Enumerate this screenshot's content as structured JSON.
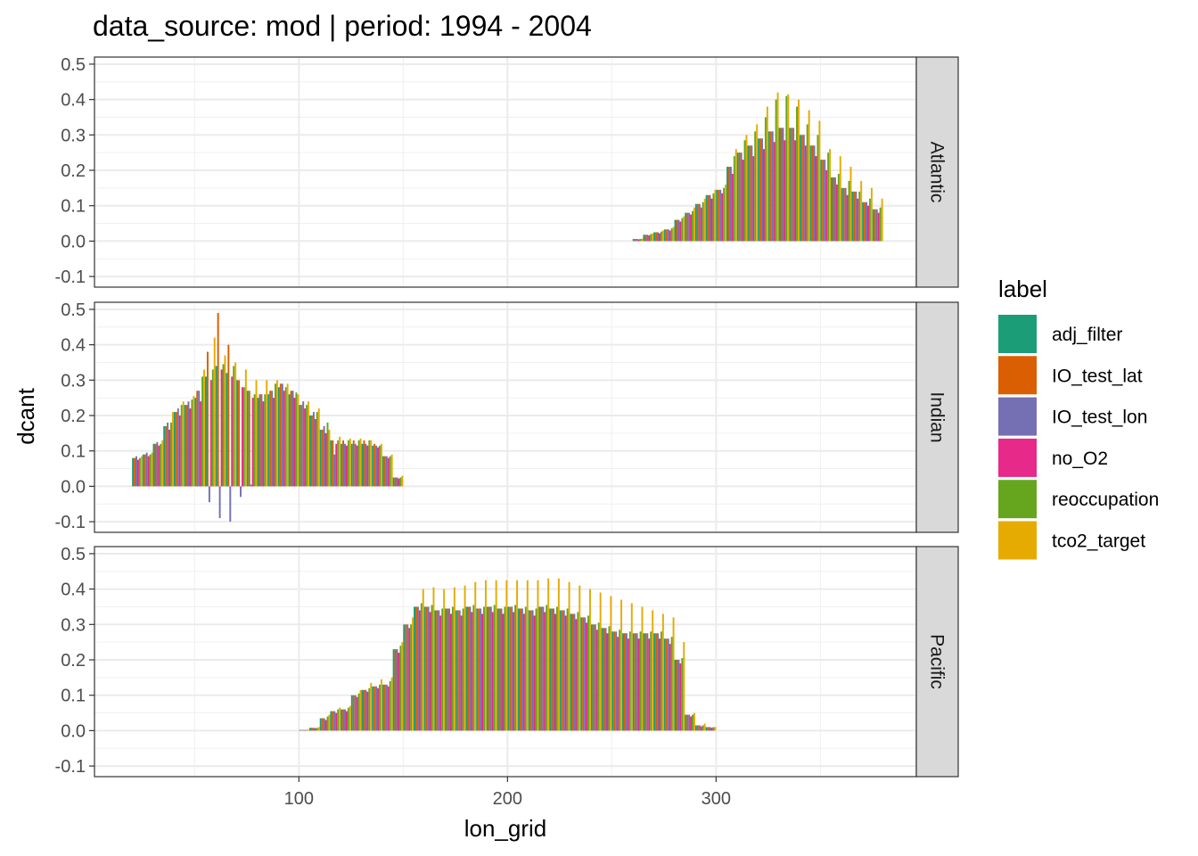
{
  "chart_data": {
    "type": "bar",
    "title": "data_source: mod | period: 1994 - 2004",
    "xlabel": "lon_grid",
    "ylabel": "dcant",
    "xlim": [
      2,
      396
    ],
    "ylim": [
      -0.13,
      0.52
    ],
    "x_ticks": [
      100,
      200,
      300
    ],
    "y_ticks": [
      -0.1,
      0.0,
      0.1,
      0.2,
      0.3,
      0.4,
      0.5
    ],
    "y_tick_labels": [
      "-0.1",
      "0.0",
      "0.1",
      "0.2",
      "0.3",
      "0.4",
      "0.5"
    ],
    "bar_width": 5,
    "legend": {
      "title": "label",
      "placement": "right",
      "entries": [
        {
          "name": "adj_filter",
          "color": "#1B9E77"
        },
        {
          "name": "IO_test_lat",
          "color": "#D95F02"
        },
        {
          "name": "IO_test_lon",
          "color": "#7570B3"
        },
        {
          "name": "no_O2",
          "color": "#E7298A"
        },
        {
          "name": "reoccupation",
          "color": "#66A61E"
        },
        {
          "name": "tco2_target",
          "color": "#E6AB02"
        }
      ]
    },
    "panels": [
      {
        "name": "Atlantic",
        "x": [
          262.5,
          267.5,
          272.5,
          277.5,
          282.5,
          287.5,
          292.5,
          297.5,
          302.5,
          307.5,
          312.5,
          317.5,
          322.5,
          327.5,
          332.5,
          337.5,
          342.5,
          347.5,
          352.5,
          357.5,
          362.5,
          367.5,
          372.5,
          377.5
        ],
        "series": [
          {
            "name": "adj_filter",
            "values": [
              0.006,
              0.018,
              0.025,
              0.033,
              0.06,
              0.08,
              0.105,
              0.13,
              0.145,
              0.21,
              0.25,
              0.27,
              0.29,
              0.31,
              0.32,
              0.32,
              0.3,
              0.27,
              0.23,
              0.18,
              0.15,
              0.14,
              0.11,
              0.09
            ]
          },
          {
            "name": "IO_test_lat",
            "values": [
              0.006,
              0.018,
              0.025,
              0.033,
              0.06,
              0.08,
              0.105,
              0.13,
              0.145,
              0.21,
              0.25,
              0.27,
              0.29,
              0.31,
              0.32,
              0.32,
              0.3,
              0.27,
              0.23,
              0.18,
              0.15,
              0.14,
              0.11,
              0.09
            ]
          },
          {
            "name": "IO_test_lon",
            "values": [
              0.006,
              0.018,
              0.025,
              0.033,
              0.06,
              0.08,
              0.105,
              0.13,
              0.145,
              0.21,
              0.25,
              0.27,
              0.29,
              0.31,
              0.32,
              0.32,
              0.3,
              0.27,
              0.23,
              0.18,
              0.15,
              0.14,
              0.11,
              0.09
            ]
          },
          {
            "name": "no_O2",
            "values": [
              0.005,
              0.016,
              0.022,
              0.03,
              0.055,
              0.075,
              0.095,
              0.12,
              0.135,
              0.19,
              0.23,
              0.24,
              0.26,
              0.28,
              0.285,
              0.285,
              0.27,
              0.24,
              0.2,
              0.16,
              0.13,
              0.12,
              0.1,
              0.08
            ]
          },
          {
            "name": "reoccupation",
            "values": [
              0.006,
              0.02,
              0.027,
              0.036,
              0.065,
              0.085,
              0.11,
              0.135,
              0.15,
              0.24,
              0.285,
              0.31,
              0.35,
              0.4,
              0.41,
              0.38,
              0.33,
              0.3,
              0.25,
              0.19,
              0.17,
              0.14,
              0.12,
              0.095
            ]
          },
          {
            "name": "tco2_target",
            "values": [
              0.007,
              0.022,
              0.03,
              0.04,
              0.07,
              0.095,
              0.12,
              0.145,
              0.16,
              0.26,
              0.3,
              0.33,
              0.38,
              0.42,
              0.415,
              0.4,
              0.37,
              0.34,
              0.26,
              0.24,
              0.21,
              0.17,
              0.15,
              0.12
            ]
          }
        ]
      },
      {
        "name": "Indian",
        "x": [
          22.5,
          27.5,
          32.5,
          37.5,
          42.5,
          47.5,
          52.5,
          57.5,
          62.5,
          67.5,
          72.5,
          77.5,
          82.5,
          87.5,
          92.5,
          97.5,
          102.5,
          107.5,
          112.5,
          117.5,
          122.5,
          127.5,
          132.5,
          137.5,
          142.5,
          147.5
        ],
        "series": [
          {
            "name": "adj_filter",
            "values": [
              0.08,
              0.09,
              0.12,
              0.17,
              0.21,
              0.23,
              0.25,
              0.31,
              0.34,
              0.32,
              0.3,
              0.27,
              0.25,
              0.26,
              0.28,
              0.26,
              0.23,
              0.2,
              0.16,
              0.13,
              0.12,
              0.12,
              0.12,
              0.115,
              0.085,
              0.025
            ]
          },
          {
            "name": "IO_test_lat",
            "values": [
              0.08,
              0.09,
              0.12,
              0.17,
              0.21,
              0.23,
              0.27,
              0.38,
              0.49,
              0.4,
              0.3,
              0.27,
              0.26,
              0.27,
              0.29,
              0.27,
              0.23,
              0.2,
              0.16,
              0.13,
              0.13,
              0.13,
              0.13,
              0.12,
              0.085,
              0.025
            ]
          },
          {
            "name": "IO_test_lon",
            "values": [
              0.085,
              0.095,
              0.125,
              0.18,
              0.22,
              0.24,
              0.27,
              -0.045,
              -0.09,
              -0.1,
              -0.03,
              0.005,
              0.26,
              0.27,
              0.29,
              0.27,
              0.24,
              0.21,
              0.17,
              0.09,
              0.12,
              0.12,
              0.12,
              0.115,
              0.085,
              0.025
            ]
          },
          {
            "name": "no_O2",
            "values": [
              0.075,
              0.085,
              0.115,
              0.16,
              0.2,
              0.22,
              0.24,
              0.3,
              0.33,
              0.31,
              0.28,
              0.25,
              0.24,
              0.25,
              0.27,
              0.25,
              0.22,
              0.19,
              0.15,
              0.12,
              0.115,
              0.115,
              0.115,
              0.11,
              0.08,
              0.022
            ]
          },
          {
            "name": "reoccupation",
            "values": [
              0.08,
              0.09,
              0.12,
              0.18,
              0.23,
              0.245,
              0.31,
              0.33,
              0.345,
              0.34,
              0.28,
              0.26,
              0.26,
              0.29,
              0.28,
              0.265,
              0.23,
              0.21,
              0.18,
              0.13,
              0.13,
              0.13,
              0.13,
              0.115,
              0.085,
              0.025
            ]
          },
          {
            "name": "tco2_target",
            "values": [
              0.085,
              0.095,
              0.13,
              0.21,
              0.24,
              0.255,
              0.33,
              0.42,
              0.37,
              0.35,
              0.33,
              0.3,
              0.3,
              0.3,
              0.29,
              0.26,
              0.24,
              0.22,
              0.16,
              0.14,
              0.135,
              0.135,
              0.13,
              0.12,
              0.09,
              0.03
            ]
          }
        ]
      },
      {
        "name": "Pacific",
        "x": [
          102.5,
          107.5,
          112.5,
          117.5,
          122.5,
          127.5,
          132.5,
          137.5,
          142.5,
          147.5,
          152.5,
          157.5,
          162.5,
          167.5,
          172.5,
          177.5,
          182.5,
          187.5,
          192.5,
          197.5,
          202.5,
          207.5,
          212.5,
          217.5,
          222.5,
          227.5,
          232.5,
          237.5,
          242.5,
          247.5,
          252.5,
          257.5,
          262.5,
          267.5,
          272.5,
          277.5,
          282.5,
          287.5,
          292.5,
          297.5
        ],
        "series": [
          {
            "name": "adj_filter",
            "values": [
              0.002,
              0.008,
              0.035,
              0.055,
              0.06,
              0.1,
              0.115,
              0.125,
              0.13,
              0.23,
              0.3,
              0.35,
              0.35,
              0.34,
              0.345,
              0.34,
              0.35,
              0.345,
              0.35,
              0.345,
              0.35,
              0.345,
              0.34,
              0.35,
              0.345,
              0.34,
              0.33,
              0.32,
              0.3,
              0.29,
              0.28,
              0.275,
              0.275,
              0.275,
              0.275,
              0.26,
              0.2,
              0.045,
              0.015,
              0.01
            ]
          },
          {
            "name": "IO_test_lat",
            "values": [
              0.002,
              0.008,
              0.035,
              0.055,
              0.06,
              0.1,
              0.115,
              0.125,
              0.13,
              0.23,
              0.3,
              0.35,
              0.35,
              0.34,
              0.345,
              0.34,
              0.35,
              0.345,
              0.35,
              0.345,
              0.35,
              0.345,
              0.34,
              0.35,
              0.345,
              0.34,
              0.33,
              0.32,
              0.3,
              0.29,
              0.28,
              0.275,
              0.275,
              0.275,
              0.275,
              0.26,
              0.2,
              0.045,
              0.015,
              0.01
            ]
          },
          {
            "name": "IO_test_lon",
            "values": [
              0.002,
              0.008,
              0.035,
              0.055,
              0.06,
              0.1,
              0.115,
              0.125,
              0.13,
              0.23,
              0.3,
              0.35,
              0.35,
              0.34,
              0.345,
              0.34,
              0.35,
              0.345,
              0.35,
              0.345,
              0.35,
              0.345,
              0.34,
              0.35,
              0.345,
              0.34,
              0.33,
              0.32,
              0.3,
              0.29,
              0.28,
              0.275,
              0.275,
              0.275,
              0.275,
              0.26,
              0.2,
              0.045,
              0.015,
              0.01
            ]
          },
          {
            "name": "no_O2",
            "values": [
              0.002,
              0.007,
              0.03,
              0.05,
              0.055,
              0.095,
              0.11,
              0.12,
              0.125,
              0.22,
              0.29,
              0.34,
              0.335,
              0.325,
              0.33,
              0.325,
              0.335,
              0.33,
              0.335,
              0.33,
              0.335,
              0.33,
              0.325,
              0.335,
              0.33,
              0.325,
              0.315,
              0.305,
              0.285,
              0.275,
              0.265,
              0.26,
              0.26,
              0.26,
              0.26,
              0.245,
              0.19,
              0.04,
              0.012,
              0.008
            ]
          },
          {
            "name": "reoccupation",
            "values": [
              0.002,
              0.008,
              0.04,
              0.06,
              0.065,
              0.105,
              0.12,
              0.13,
              0.14,
              0.24,
              0.3,
              0.36,
              0.355,
              0.345,
              0.35,
              0.345,
              0.355,
              0.35,
              0.355,
              0.35,
              0.355,
              0.35,
              0.345,
              0.355,
              0.35,
              0.345,
              0.335,
              0.325,
              0.305,
              0.295,
              0.285,
              0.28,
              0.28,
              0.28,
              0.28,
              0.265,
              0.205,
              0.045,
              0.015,
              0.01
            ]
          },
          {
            "name": "tco2_target",
            "values": [
              0.003,
              0.01,
              0.045,
              0.065,
              0.07,
              0.115,
              0.135,
              0.145,
              0.15,
              0.25,
              0.32,
              0.4,
              0.405,
              0.4,
              0.405,
              0.41,
              0.42,
              0.425,
              0.425,
              0.425,
              0.425,
              0.425,
              0.425,
              0.43,
              0.43,
              0.42,
              0.41,
              0.4,
              0.39,
              0.38,
              0.37,
              0.36,
              0.35,
              0.34,
              0.33,
              0.32,
              0.25,
              0.05,
              0.02,
              0.01
            ]
          }
        ]
      }
    ]
  }
}
